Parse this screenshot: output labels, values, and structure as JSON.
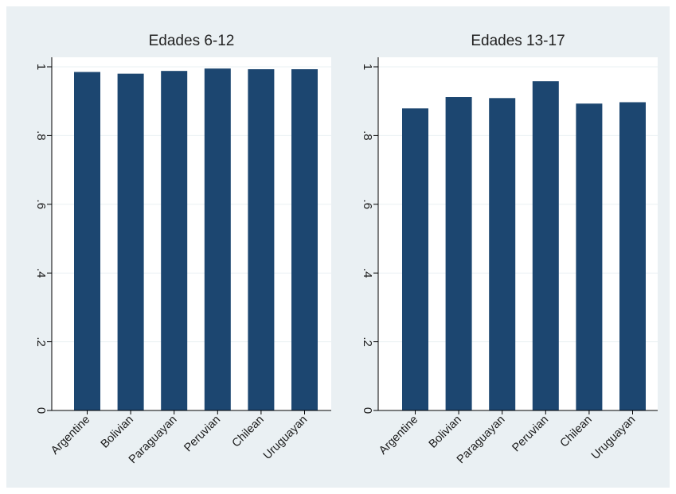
{
  "chart_data": [
    {
      "type": "bar",
      "title": "Edades 6-12",
      "categories": [
        "Argentine",
        "Bolivian",
        "Paraguayan",
        "Peruvian",
        "Chilean",
        "Uruguayan"
      ],
      "values": [
        0.985,
        0.98,
        0.988,
        0.995,
        0.993,
        0.993
      ],
      "ylim": [
        0,
        1
      ],
      "yticks": [
        0,
        0.2,
        0.4,
        0.6,
        0.8,
        1
      ],
      "ytick_labels": [
        "0",
        ".2",
        ".4",
        ".6",
        ".8",
        "1"
      ],
      "grid": true,
      "bar_color": "#1c4670"
    },
    {
      "type": "bar",
      "title": "Edades 13-17",
      "categories": [
        "Argentine",
        "Bolivian",
        "Paraguayan",
        "Peruvian",
        "Chilean",
        "Uruguayan"
      ],
      "values": [
        0.879,
        0.912,
        0.909,
        0.958,
        0.893,
        0.897
      ],
      "ylim": [
        0,
        1
      ],
      "yticks": [
        0,
        0.2,
        0.4,
        0.6,
        0.8,
        1
      ],
      "ytick_labels": [
        "0",
        ".2",
        ".4",
        ".6",
        ".8",
        "1"
      ],
      "grid": true,
      "bar_color": "#1c4670"
    }
  ],
  "colors": {
    "background": "#eaf0f3",
    "plot_area": "#ffffff",
    "bar": "#1c4670"
  }
}
